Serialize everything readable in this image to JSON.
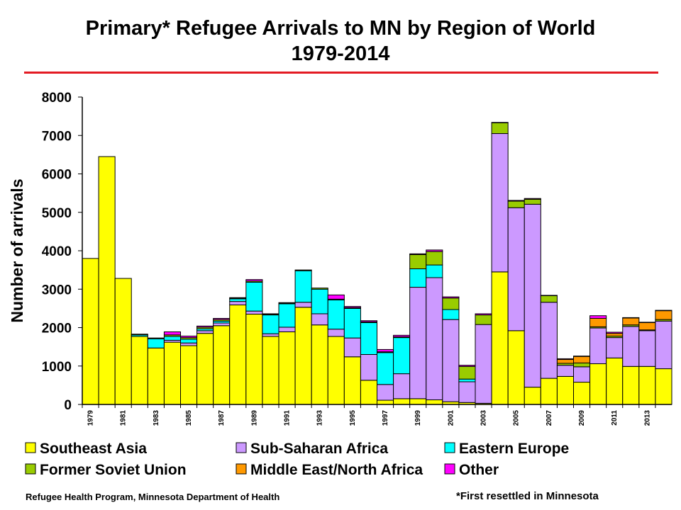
{
  "title_line1": "Primary* Refugee Arrivals to MN by Region of World",
  "title_line2": "1979-2014",
  "footer_left": "Refugee Health Program, Minnesota Department of Health",
  "footer_right": "*First resettled in Minnesota",
  "chart_data": {
    "type": "bar",
    "stacked": true,
    "ylabel": "Number of arrivals",
    "ylim": [
      0,
      8000
    ],
    "yticks": [
      0,
      1000,
      2000,
      3000,
      4000,
      5000,
      6000,
      7000,
      8000
    ],
    "categories": [
      1979,
      1980,
      1981,
      1982,
      1983,
      1984,
      1985,
      1986,
      1987,
      1988,
      1989,
      1990,
      1991,
      1992,
      1993,
      1994,
      1995,
      1996,
      1997,
      1998,
      1999,
      2000,
      2001,
      2002,
      2003,
      2004,
      2005,
      2006,
      2007,
      2008,
      2009,
      2010,
      2011,
      2012,
      2013,
      2014
    ],
    "xtick_labels": [
      "1979",
      "1981",
      "1983",
      "1985",
      "1987",
      "1989",
      "1991",
      "1993",
      "1995",
      "1997",
      "1999",
      "2001",
      "2003",
      "2005",
      "2007",
      "2009",
      "2011",
      "2013"
    ],
    "legend_position": "bottom",
    "series": [
      {
        "name": "Southeast Asia",
        "color": "#ffff00",
        "values": [
          3800,
          6450,
          3280,
          1770,
          1470,
          1620,
          1530,
          1850,
          2050,
          2590,
          2350,
          1770,
          1890,
          2530,
          2070,
          1770,
          1240,
          630,
          110,
          150,
          150,
          120,
          70,
          50,
          30,
          3450,
          1920,
          450,
          680,
          730,
          580,
          1060,
          1210,
          990,
          990,
          930
        ]
      },
      {
        "name": "Sub-Saharan Africa",
        "color": "#cc99ff",
        "values": [
          0,
          0,
          0,
          0,
          0,
          50,
          70,
          70,
          70,
          90,
          80,
          70,
          120,
          130,
          290,
          190,
          490,
          670,
          410,
          650,
          2900,
          3180,
          2140,
          540,
          2050,
          3600,
          3200,
          4760,
          1980,
          290,
          400,
          930,
          530,
          1040,
          930,
          1240
        ]
      },
      {
        "name": "Eastern Europe",
        "color": "#00ffff",
        "values": [
          0,
          0,
          0,
          40,
          240,
          100,
          100,
          50,
          50,
          70,
          750,
          490,
          610,
          820,
          640,
          760,
          770,
          830,
          830,
          940,
          480,
          330,
          260,
          70,
          0,
          0,
          0,
          0,
          0,
          0,
          0,
          0,
          0,
          0,
          0,
          0
        ]
      },
      {
        "name": "Former Soviet Union",
        "color": "#99cc00",
        "values": [
          0,
          0,
          0,
          20,
          20,
          40,
          40,
          40,
          40,
          20,
          30,
          20,
          20,
          20,
          30,
          20,
          20,
          20,
          20,
          20,
          370,
          350,
          300,
          330,
          250,
          280,
          170,
          130,
          170,
          50,
          100,
          30,
          40,
          40,
          20,
          40
        ]
      },
      {
        "name": "Middle East/North Africa",
        "color": "#ff9900",
        "values": [
          0,
          0,
          0,
          0,
          0,
          0,
          0,
          0,
          0,
          0,
          0,
          0,
          0,
          0,
          0,
          0,
          0,
          0,
          0,
          0,
          0,
          0,
          0,
          0,
          0,
          0,
          0,
          0,
          0,
          100,
          170,
          220,
          70,
          180,
          190,
          230
        ]
      },
      {
        "name": "Other",
        "color": "#ff00ff",
        "values": [
          0,
          0,
          0,
          0,
          0,
          80,
          40,
          30,
          30,
          10,
          40,
          10,
          10,
          0,
          0,
          110,
          30,
          30,
          60,
          40,
          20,
          40,
          30,
          30,
          30,
          10,
          20,
          20,
          10,
          20,
          10,
          70,
          30,
          10,
          10,
          10
        ]
      }
    ]
  }
}
